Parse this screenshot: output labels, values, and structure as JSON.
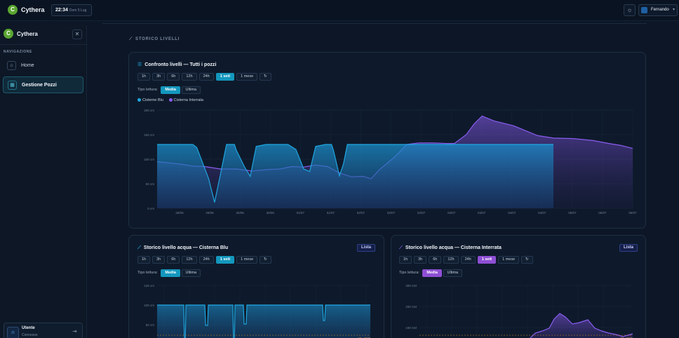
{
  "app": {
    "name": "Cythera",
    "logo_letter": "C"
  },
  "header": {
    "time": "22:34",
    "date": "Dom 5 Lug",
    "user_name": "Fernando"
  },
  "sidebar": {
    "title": "Cythera",
    "nav_label": "NAVIGAZIONE",
    "items": [
      {
        "label": "Home",
        "icon": "home-icon"
      },
      {
        "label": "Gestione Pozzi",
        "icon": "grid-icon"
      }
    ],
    "user_name": "Utente",
    "user_status": "Connesso"
  },
  "section_title": "STORICO LIVELLI",
  "range_buttons": [
    "1h",
    "3h",
    "6h",
    "12h",
    "24h",
    "1 sett",
    "1 mese"
  ],
  "selected_range": "1 sett",
  "read_type_label": "Tipo lettura:",
  "read_types": [
    "Media",
    "Ultima"
  ],
  "lista_label": "Lista",
  "colors": {
    "blue": "#1fa6e0",
    "purple": "#8a5cf0",
    "accent_cyan": "#1497bd",
    "accent_purple": "#8e4fd4",
    "threshold": "#d98b2b"
  },
  "comparison": {
    "title": "Confronto livelli — Tutti i pozzi",
    "chart_data": {
      "type": "area",
      "ylabels": [
        "200 cm",
        "150 cm",
        "100 cm",
        "50 cm",
        "0 cm"
      ],
      "ylim": [
        0,
        200
      ],
      "xlabels": [
        "28/06",
        "29/06",
        "30/06",
        "30/06",
        "01/07",
        "01/07",
        "02/07",
        "02/07",
        "02/07",
        "03/07",
        "03/07",
        "04/07",
        "04/07",
        "05/07",
        "05/07",
        "05/07"
      ],
      "series": [
        {
          "name": "Cisterne Blu",
          "color": "#1fa6e0",
          "values": [
            [
              0,
              130
            ],
            [
              0.06,
              130
            ],
            [
              0.09,
              130
            ],
            [
              0.1,
              124
            ],
            [
              0.13,
              60
            ],
            [
              0.145,
              12
            ],
            [
              0.16,
              70
            ],
            [
              0.175,
              130
            ],
            [
              0.195,
              130
            ],
            [
              0.2,
              118
            ],
            [
              0.22,
              85
            ],
            [
              0.235,
              65
            ],
            [
              0.25,
              126
            ],
            [
              0.275,
              130
            ],
            [
              0.31,
              130
            ],
            [
              0.33,
              130
            ],
            [
              0.35,
              120
            ],
            [
              0.37,
              80
            ],
            [
              0.385,
              75
            ],
            [
              0.4,
              126
            ],
            [
              0.425,
              130
            ],
            [
              0.44,
              130
            ],
            [
              0.445,
              118
            ],
            [
              0.46,
              66
            ],
            [
              0.47,
              90
            ],
            [
              0.48,
              130
            ],
            [
              0.52,
              130
            ],
            [
              0.55,
              130
            ],
            [
              0.7,
              130
            ],
            [
              0.85,
              130
            ],
            [
              1,
              130
            ]
          ]
        },
        {
          "name": "Cisterna Interrata",
          "color": "#8a5cf0",
          "values": [
            [
              0,
              95
            ],
            [
              0.06,
              90
            ],
            [
              0.09,
              86
            ],
            [
              0.12,
              85
            ],
            [
              0.16,
              80
            ],
            [
              0.2,
              80
            ],
            [
              0.24,
              76
            ],
            [
              0.28,
              79
            ],
            [
              0.31,
              80
            ],
            [
              0.34,
              85
            ],
            [
              0.37,
              84
            ],
            [
              0.4,
              88
            ],
            [
              0.43,
              85
            ],
            [
              0.46,
              72
            ],
            [
              0.49,
              64
            ],
            [
              0.52,
              65
            ],
            [
              0.54,
              60
            ],
            [
              0.56,
              78
            ],
            [
              0.6,
              105
            ],
            [
              0.63,
              130
            ],
            [
              0.66,
              133
            ],
            [
              0.7,
              133
            ],
            [
              0.73,
              132
            ],
            [
              0.75,
              132
            ],
            [
              0.78,
              150
            ],
            [
              0.8,
              172
            ],
            [
              0.82,
              188
            ],
            [
              0.85,
              178
            ],
            [
              0.88,
              172
            ],
            [
              0.9,
              168
            ],
            [
              0.93,
              158
            ],
            [
              0.96,
              148
            ],
            [
              1,
              143
            ],
            [
              1.05,
              142
            ],
            [
              1.1,
              138
            ],
            [
              1.14,
              132
            ],
            [
              1.17,
              128
            ],
            [
              1.2,
              122
            ]
          ]
        }
      ]
    }
  },
  "blu": {
    "title": "Storico livello acqua — Cisterna Blu",
    "chart_data": {
      "type": "area",
      "ylabels": [
        "125 cm",
        "100 cm",
        "50 cm"
      ],
      "threshold_label": "47 - 0CR",
      "series": [
        {
          "name": "Cisterna Blu",
          "values": []
        }
      ]
    }
  },
  "interrata": {
    "title": "Storico livello acqua — Cisterna Interrata",
    "chart_data": {
      "type": "area",
      "ylabels": [
        "300 CM",
        "200 CM",
        "150 CM"
      ],
      "threshold_label": "47 - 0CR",
      "series": [
        {
          "name": "Cisterna Interrata",
          "values": []
        }
      ]
    }
  }
}
